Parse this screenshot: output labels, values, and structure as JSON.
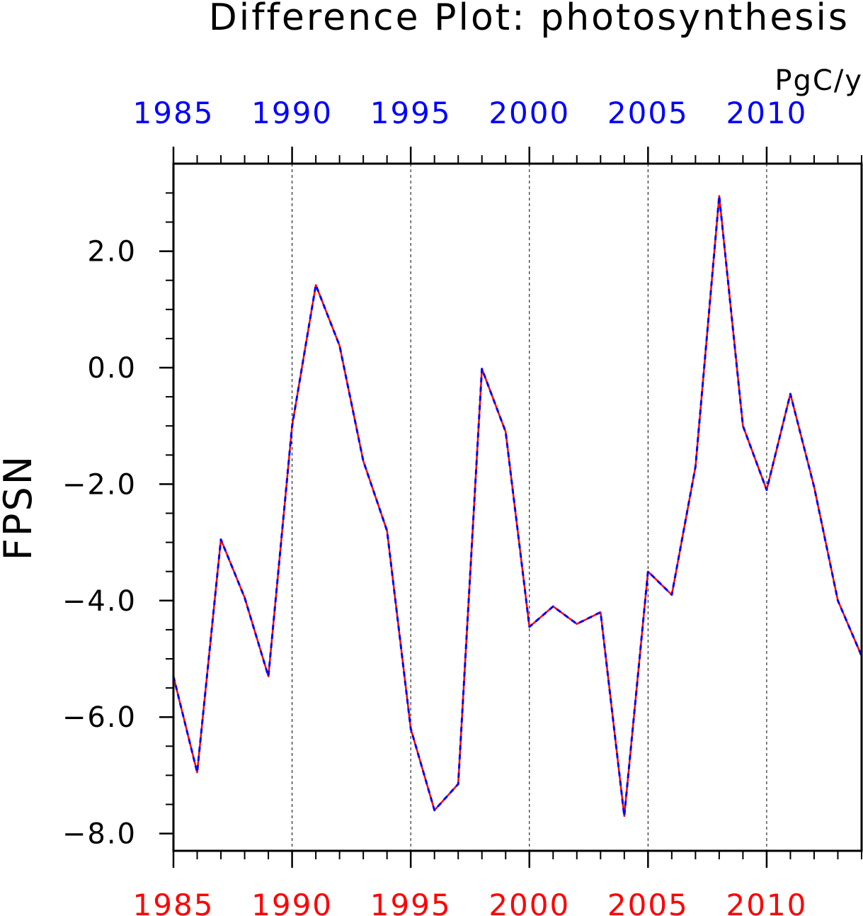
{
  "chart_data": {
    "type": "line",
    "title": "Difference Plot: photosynthesis",
    "units": "PgC/y",
    "ylabel": "FPSN",
    "xlabel": "",
    "xlim": [
      1985,
      2014
    ],
    "ylim": [
      -8.3,
      3.5
    ],
    "y_ticks": [
      2.0,
      0.0,
      -2.0,
      -4.0,
      -6.0,
      -8.0
    ],
    "y_tick_labels": [
      "2.0",
      "0.0",
      "−2.0",
      "−4.0",
      "−6.0",
      "−8.0"
    ],
    "x_ticks": [
      1985,
      1990,
      1995,
      2000,
      2005,
      2010
    ],
    "x_tick_labels": [
      "1985",
      "1990",
      "1995",
      "2000",
      "2005",
      "2010"
    ],
    "grid": "vertical dashed lines at major x ticks",
    "x": [
      1985,
      1986,
      1987,
      1988,
      1989,
      1990,
      1991,
      1992,
      1993,
      1994,
      1995,
      1996,
      1997,
      1998,
      1999,
      2000,
      2001,
      2002,
      2003,
      2004,
      2005,
      2006,
      2007,
      2008,
      2009,
      2010,
      2011,
      2012,
      2013,
      2014
    ],
    "series": [
      {
        "color": "#ff0000",
        "style": "solid",
        "values": [
          -5.3,
          -6.95,
          -2.95,
          -3.95,
          -5.3,
          -1.0,
          1.42,
          0.38,
          -1.6,
          -2.8,
          -6.2,
          -7.6,
          -7.15,
          -0.02,
          -1.1,
          -4.45,
          -4.1,
          -4.4,
          -4.2,
          -7.7,
          -3.5,
          -3.9,
          -1.7,
          2.95,
          -1.0,
          -2.1,
          -0.45,
          -2.05,
          -4.0,
          -4.95
        ]
      },
      {
        "color": "#0000ff",
        "style": "dashed",
        "values": [
          -5.3,
          -6.95,
          -2.95,
          -3.95,
          -5.3,
          -1.0,
          1.42,
          0.38,
          -1.6,
          -2.8,
          -6.2,
          -7.6,
          -7.15,
          -0.02,
          -1.1,
          -4.45,
          -4.1,
          -4.4,
          -4.2,
          -7.7,
          -3.5,
          -3.9,
          -1.7,
          2.95,
          -1.0,
          -2.1,
          -0.45,
          -2.05,
          -4.0,
          -4.95
        ]
      }
    ],
    "colors": {
      "top_axis": "#0000ff",
      "bottom_axis": "#ff0000"
    }
  }
}
